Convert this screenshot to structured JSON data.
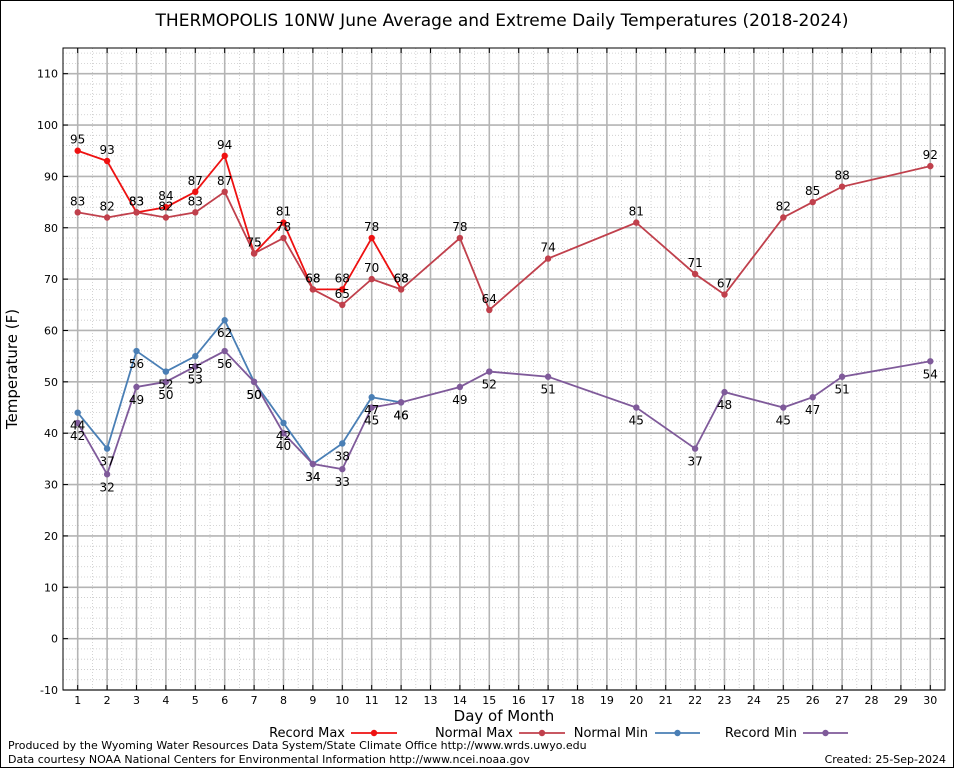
{
  "chart_data": {
    "type": "line",
    "title": "THERMOPOLIS 10NW June Average and Extreme Daily Temperatures (2018-2024)",
    "xlabel": "Day of Month",
    "ylabel": "Temperature (F)",
    "xlim": [
      0.5,
      30.5
    ],
    "ylim": [
      -10,
      115
    ],
    "x_ticks": [
      1,
      2,
      3,
      4,
      5,
      6,
      7,
      8,
      9,
      10,
      11,
      12,
      13,
      14,
      15,
      16,
      17,
      18,
      19,
      20,
      21,
      22,
      23,
      24,
      25,
      26,
      27,
      28,
      29,
      30
    ],
    "y_ticks": [
      -10,
      0,
      10,
      20,
      30,
      40,
      50,
      60,
      70,
      80,
      90,
      100,
      110
    ],
    "grid": true,
    "legend_position": "bottom",
    "series": [
      {
        "name": "Record Max",
        "color": "#ee1111",
        "x": [
          1,
          2,
          3,
          4,
          5,
          6,
          7,
          8,
          9,
          10,
          11,
          12
        ],
        "values": [
          95,
          93,
          83,
          84,
          87,
          94,
          75,
          81,
          68,
          68,
          78,
          68
        ]
      },
      {
        "name": "Normal Max",
        "color": "#c0404c",
        "x": [
          1,
          2,
          3,
          4,
          5,
          6,
          7,
          8,
          9,
          10,
          11,
          12,
          14,
          15,
          17,
          20,
          22,
          23,
          25,
          26,
          27,
          30
        ],
        "values": [
          83,
          82,
          83,
          82,
          83,
          87,
          75,
          78,
          68,
          65,
          70,
          68,
          78,
          64,
          74,
          81,
          71,
          67,
          82,
          85,
          88,
          92
        ]
      },
      {
        "name": "Normal Min",
        "color": "#4a7fb5",
        "x": [
          1,
          2,
          3,
          4,
          5,
          6,
          7,
          8,
          9,
          10,
          11,
          12
        ],
        "values": [
          44,
          37,
          56,
          52,
          55,
          62,
          50,
          42,
          34,
          38,
          47,
          46
        ]
      },
      {
        "name": "Record Min",
        "color": "#7f5a9a",
        "x": [
          1,
          2,
          3,
          4,
          5,
          6,
          7,
          8,
          9,
          10,
          11,
          12,
          14,
          15,
          17,
          20,
          22,
          23,
          25,
          26,
          27,
          30
        ],
        "values": [
          42,
          32,
          49,
          50,
          53,
          56,
          50,
          40,
          34,
          33,
          45,
          46,
          49,
          52,
          51,
          45,
          37,
          48,
          45,
          47,
          51,
          54
        ]
      }
    ]
  },
  "footer": {
    "line1": "Produced by the Wyoming Water Resources Data System/State Climate Office http://www.wrds.uwyo.edu",
    "line2": "Data courtesy NOAA National Centers for Environmental Information http://www.ncei.noaa.gov",
    "created": "Created: 25-Sep-2024"
  }
}
